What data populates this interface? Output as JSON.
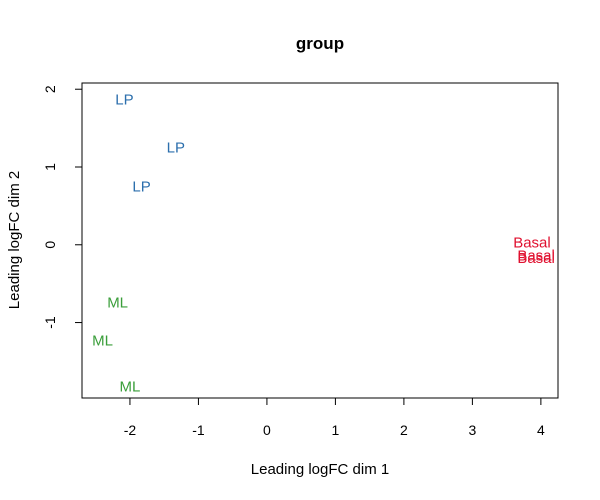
{
  "chart_data": {
    "type": "scatter",
    "title": "group",
    "xlabel": "Leading logFC dim 1",
    "ylabel": "Leading logFC dim 2",
    "xlim": [
      -2.7,
      4.25
    ],
    "ylim": [
      -1.97,
      2.08
    ],
    "xticks": [
      -2,
      -1,
      0,
      1,
      2,
      3,
      4
    ],
    "yticks": [
      -1,
      0,
      1,
      2
    ],
    "grid": false,
    "colors": {
      "LP": "#2c6fad",
      "ML": "#3a9e3a",
      "Basal": "#e0102f"
    },
    "points": [
      {
        "label": "LP",
        "x": -2.08,
        "y": 1.87
      },
      {
        "label": "LP",
        "x": -1.33,
        "y": 1.25
      },
      {
        "label": "LP",
        "x": -1.83,
        "y": 0.75
      },
      {
        "label": "Basal",
        "x": 3.87,
        "y": 0.03
      },
      {
        "label": "Basal",
        "x": 3.93,
        "y": -0.14
      },
      {
        "label": "Basal",
        "x": 3.93,
        "y": -0.17
      },
      {
        "label": "ML",
        "x": -2.18,
        "y": -0.74
      },
      {
        "label": "ML",
        "x": -2.4,
        "y": -1.23
      },
      {
        "label": "ML",
        "x": -2.0,
        "y": -1.82
      }
    ]
  }
}
